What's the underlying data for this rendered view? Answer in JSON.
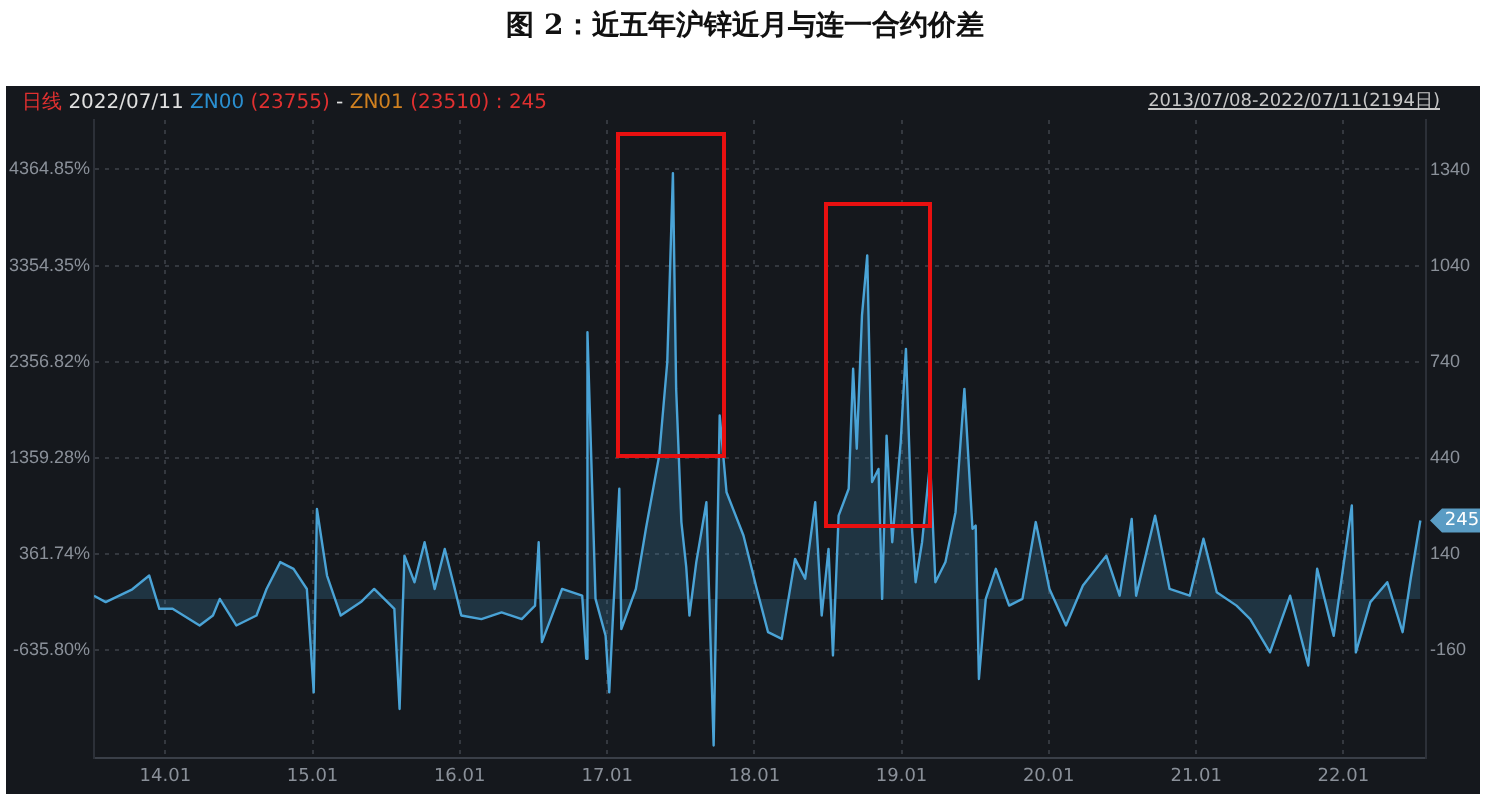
{
  "chart_data": {
    "type": "area",
    "title": "图 2：近五年沪锌近月与连一合约价差",
    "subtitle": "日线 2022/07/11 ZN00 (23755) - ZN01 (23510) : 245",
    "annotations": [
      "2013/07/08-2022/07/11(2194日)",
      {
        "text": "245",
        "x": "2022-07-11",
        "y": 245
      }
    ],
    "x": [
      "2013-07-08",
      "2013-08-06",
      "2013-10-11",
      "2013-11-22",
      "2013-12-17",
      "2014-01-19",
      "2014-03-27",
      "2014-04-29",
      "2014-05-16",
      "2014-06-26",
      "2014-08-15",
      "2014-09-09",
      "2014-10-13",
      "2014-11-15",
      "2014-12-18",
      "2015-01-04",
      "2015-01-12",
      "2015-02-06",
      "2015-03-12",
      "2015-05-01",
      "2015-06-03",
      "2015-07-23",
      "2015-08-05",
      "2015-08-17",
      "2015-09-11",
      "2015-10-06",
      "2015-10-31",
      "2015-11-25",
      "2015-12-20",
      "2016-01-05",
      "2016-02-24",
      "2016-04-14",
      "2016-06-03",
      "2016-07-06",
      "2016-07-15",
      "2016-07-23",
      "2016-09-11",
      "2016-10-31",
      "2016-11-10",
      "2016-11-13",
      "2016-12-03",
      "2016-12-28",
      "2017-01-06",
      "2017-01-31",
      "2017-02-05",
      "2017-03-13",
      "2017-04-07",
      "2017-05-10",
      "2017-05-30",
      "2017-06-13",
      "2017-06-21",
      "2017-07-04",
      "2017-07-16",
      "2017-07-24",
      "2017-08-10",
      "2017-09-04",
      "2017-09-22",
      "2017-10-07",
      "2017-10-24",
      "2017-12-05",
      "2018-01-07",
      "2018-02-04",
      "2018-03-10",
      "2018-04-12",
      "2018-05-07",
      "2018-06-01",
      "2018-06-17",
      "2018-07-04",
      "2018-07-15",
      "2018-07-29",
      "2018-08-23",
      "2018-09-03",
      "2018-09-12",
      "2018-09-25",
      "2018-10-08",
      "2018-10-20",
      "2018-11-05",
      "2018-11-14",
      "2018-11-25",
      "2018-12-09",
      "2018-12-30",
      "2019-01-12",
      "2019-01-27",
      "2019-02-05",
      "2019-02-21",
      "2019-03-13",
      "2019-03-26",
      "2019-04-20",
      "2019-05-15",
      "2019-06-06",
      "2019-06-26",
      "2019-07-04",
      "2019-07-12",
      "2019-07-29",
      "2019-08-23",
      "2019-09-25",
      "2019-10-28",
      "2019-11-30",
      "2020-01-03",
      "2020-02-13",
      "2020-03-26",
      "2020-05-23",
      "2020-06-25",
      "2020-07-25",
      "2020-08-05",
      "2020-09-21",
      "2020-10-27",
      "2020-12-16",
      "2021-01-19",
      "2021-02-21",
      "2021-04-11",
      "2021-05-15",
      "2021-07-03",
      "2021-08-22",
      "2021-10-06",
      "2021-10-28",
      "2021-12-08",
      "2022-01-22",
      "2022-02-01",
      "2022-03-09",
      "2022-04-20",
      "2022-05-28",
      "2022-06-17",
      "2022-07-11"
    ],
    "series": [
      {
        "color": "#4aa3d6",
        "axis": "y2",
        "values": [
          10,
          -10,
          30,
          73,
          -31,
          -31,
          -83,
          -52,
          0,
          -83,
          -52,
          31,
          115,
          94,
          31,
          -292,
          281,
          73,
          -52,
          -10,
          31,
          -31,
          -344,
          135,
          52,
          177,
          31,
          156,
          31,
          -52,
          -63,
          -42,
          -63,
          -21,
          177,
          -135,
          31,
          10,
          -187,
          833,
          0,
          -115,
          -292,
          344,
          -94,
          31,
          219,
          448,
          740,
          1330,
          656,
          240,
          100,
          -52,
          115,
          302,
          -458,
          573,
          333,
          198,
          31,
          -104,
          -125,
          125,
          63,
          302,
          -52,
          156,
          -177,
          260,
          344,
          719,
          469,
          886,
          1073,
          365,
          406,
          0,
          510,
          177,
          490,
          781,
          219,
          52,
          177,
          427,
          52,
          115,
          271,
          656,
          219,
          229,
          -250,
          0,
          94,
          -21,
          0,
          240,
          31,
          -83,
          42,
          135,
          10,
          250,
          10,
          260,
          31,
          10,
          188,
          21,
          -21,
          -63,
          -167,
          10,
          -208,
          94,
          -115,
          292,
          -167,
          -10,
          52,
          -104,
          63,
          245
        ]
      }
    ],
    "xlim": [
      "2013-07-08",
      "2022-07-25"
    ],
    "xticks": [
      {
        "value": "2014-01-01",
        "label": "14.01"
      },
      {
        "value": "2015-01-01",
        "label": "15.01"
      },
      {
        "value": "2016-01-01",
        "label": "16.01"
      },
      {
        "value": "2017-01-01",
        "label": "17.01"
      },
      {
        "value": "2018-01-01",
        "label": "18.01"
      },
      {
        "value": "2019-01-01",
        "label": "19.01"
      },
      {
        "value": "2020-01-01",
        "label": "20.01"
      },
      {
        "value": "2021-01-01",
        "label": "21.01"
      },
      {
        "value": "2022-01-01",
        "label": "22.01"
      }
    ],
    "ylim": [
      -1758,
      4871
    ],
    "yticks": [
      {
        "value": 4364.85,
        "label": "4364.85%"
      },
      {
        "value": 3354.35,
        "label": "3354.35%"
      },
      {
        "value": 2356.82,
        "label": "2356.82%"
      },
      {
        "value": 1359.28,
        "label": "1359.28%"
      },
      {
        "value": 361.74,
        "label": "361.74%"
      },
      {
        "value": -635.8,
        "label": "-635.80%"
      }
    ],
    "y2lim": [
      -497,
      1496
    ],
    "y2ticks": [
      1340,
      1040,
      740,
      440,
      140,
      -160
    ],
    "grid": true,
    "marker": "none",
    "line_style": "solid"
  }
}
